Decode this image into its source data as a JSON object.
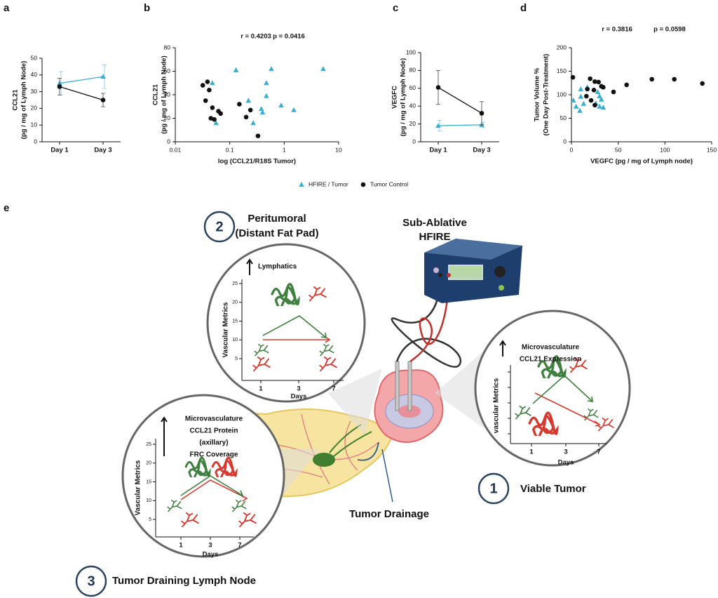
{
  "chart_data": [
    {
      "type": "line",
      "panel": "a",
      "ylabel": [
        "CCL21",
        "(pg / mg of Lymph  Node)"
      ],
      "categories": [
        "Day 1",
        "Day 3"
      ],
      "ylim": [
        0,
        50
      ],
      "yticks": [
        0,
        10,
        20,
        30,
        40,
        50
      ],
      "series": [
        {
          "name": "HFIRE / Tumor",
          "color": "#3aaed0",
          "marker": "triangle",
          "values": [
            35,
            39
          ],
          "errors": [
            7,
            7
          ]
        },
        {
          "name": "Tumor Control",
          "color": "#111111",
          "marker": "circle",
          "values": [
            33,
            25
          ],
          "errors": [
            5,
            4
          ]
        }
      ]
    },
    {
      "type": "scatter",
      "panel": "b",
      "annotation": [
        "r = 0.4203",
        "p = 0.0416"
      ],
      "xlabel": "log (CCL21/R18S Tumor)",
      "ylabel": [
        "CCL21",
        "(pg / mg of Lymph Node)"
      ],
      "xscale": "log",
      "xlim": [
        0.01,
        10
      ],
      "xticks": [
        0.01,
        0.1,
        1,
        10
      ],
      "ylim": [
        0,
        80
      ],
      "yticks": [
        0,
        20,
        40,
        60,
        80
      ],
      "series": [
        {
          "name": "HFIRE / Tumor",
          "color": "#3aaed0",
          "marker": "triangle",
          "x": [
            0.13,
            0.58,
            5.2,
            0.048,
            0.47,
            0.47,
            0.22,
            0.88,
            1.5,
            0.38,
            0.056,
            0.27,
            0.4
          ],
          "values": [
            61,
            62,
            62,
            50,
            50,
            39,
            35,
            31,
            27,
            28,
            16,
            16,
            25
          ]
        },
        {
          "name": "Tumor Control",
          "color": "#111111",
          "marker": "circle",
          "x": [
            0.039,
            0.032,
            0.042,
            0.036,
            0.048,
            0.062,
            0.068,
            0.052,
            0.045,
            0.15,
            0.24,
            0.2,
            0.33
          ],
          "values": [
            51,
            48,
            44,
            35,
            29,
            26,
            24,
            19,
            20,
            32,
            27,
            21,
            5
          ]
        }
      ]
    },
    {
      "type": "line",
      "panel": "c",
      "ylabel": [
        "VEGFC",
        "(pg / mg of Lymph  Node)"
      ],
      "categories": [
        "Day 1",
        "Day 3"
      ],
      "ylim": [
        0,
        100
      ],
      "yticks": [
        0,
        20,
        40,
        60,
        80,
        100
      ],
      "series": [
        {
          "name": "HFIRE / Tumor",
          "color": "#3aaed0",
          "marker": "triangle",
          "values": [
            18,
            19
          ],
          "errors": [
            6,
            3
          ]
        },
        {
          "name": "Tumor Control",
          "color": "#111111",
          "marker": "circle",
          "values": [
            61,
            32
          ],
          "errors": [
            19,
            13
          ]
        }
      ]
    },
    {
      "type": "scatter",
      "panel": "d",
      "annotation": [
        "r = 0.3816",
        "p = 0.0598"
      ],
      "xlabel": "VEGFC (pg  / mg of Lymph node)",
      "ylabel": [
        "Tumor Volume %",
        "(One Day Post-Treatment)"
      ],
      "xlim": [
        0,
        150
      ],
      "xticks": [
        0,
        50,
        100,
        150
      ],
      "ylim": [
        0,
        200
      ],
      "yticks": [
        0,
        50,
        100,
        150,
        200
      ],
      "series": [
        {
          "name": "HFIRE / Tumor",
          "color": "#3aaed0",
          "marker": "triangle",
          "x": [
            2,
            5,
            9,
            13,
            10,
            17,
            28,
            30,
            32,
            26,
            30,
            34,
            10
          ],
          "values": [
            88,
            75,
            66,
            81,
            112,
            116,
            106,
            97,
            90,
            82,
            75,
            73,
            96
          ]
        },
        {
          "name": "Tumor Control",
          "color": "#111111",
          "marker": "circle",
          "x": [
            1.5,
            17,
            20,
            25,
            29,
            32,
            24,
            34,
            45,
            59,
            86,
            110,
            140,
            21,
            25,
            16
          ],
          "values": [
            137,
            112,
            134,
            128,
            127,
            118,
            110,
            116,
            106,
            121,
            133,
            133,
            124,
            88,
            78,
            97
          ]
        }
      ]
    }
  ],
  "figure": {
    "panel": "e",
    "device": [
      "Sub-Ablative",
      "HFIRE"
    ],
    "drainage": "Tumor Drainage",
    "regions": [
      {
        "number": "1",
        "label": [
          "Viable Tumor"
        ],
        "inset_title": [
          "Microvasculature",
          "CCL21 Expression"
        ],
        "ylabel": "vascular Metrics",
        "xticks": [
          1,
          3,
          7
        ],
        "xlabel": "Days"
      },
      {
        "number": "2",
        "label": [
          "Peritumoral",
          "(Distant Fat Pad)"
        ],
        "inset_title": [
          "Lymphatics"
        ],
        "ylabel": "Vascular Metrics",
        "yticks": [
          5,
          10,
          15,
          20,
          25
        ],
        "xticks": [
          1,
          3,
          7
        ],
        "xlabel": "Days"
      },
      {
        "number": "3",
        "label": [
          "Tumor Draining Lymph Node"
        ],
        "inset_title": [
          "Microvasculature",
          "CCL21 Protein",
          "(axillary)",
          "FRC Coverage"
        ],
        "ylabel": "Vascular Metrics",
        "yticks": [
          5,
          10,
          15,
          20,
          25
        ],
        "xticks": [
          1,
          3,
          7
        ],
        "xlabel": "Days"
      }
    ]
  }
}
